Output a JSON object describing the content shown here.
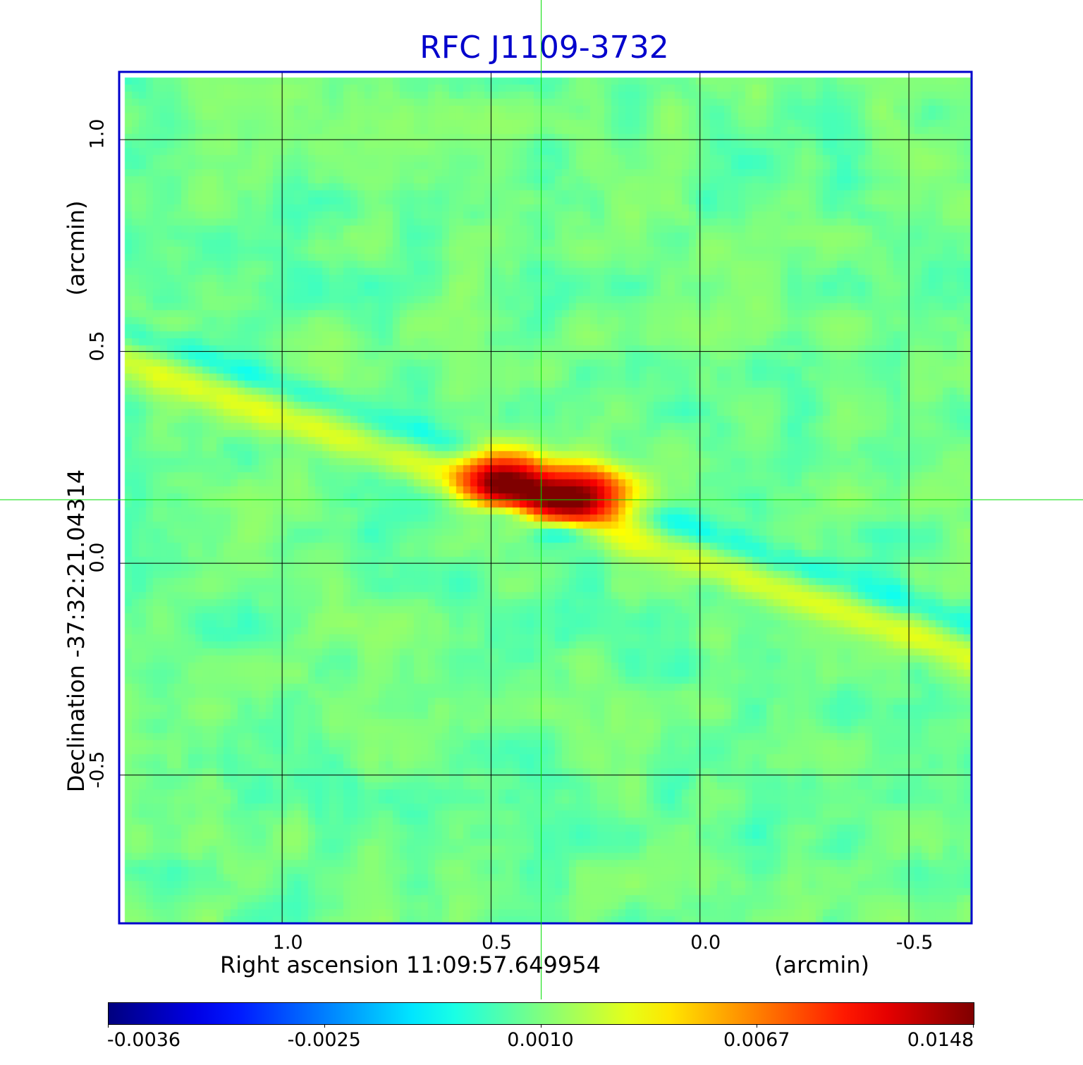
{
  "chart_data": {
    "type": "heatmap",
    "title": "RFC J1109-3732",
    "xlabel": "Right ascension  11:09:57.649954",
    "xunit": "(arcmin)",
    "ylabel": "Declination  -37:32:21.04314",
    "yunit": "(arcmin)",
    "x_ticks": [
      {
        "value": 1.0,
        "label": "1.0"
      },
      {
        "value": 0.5,
        "label": "0.5"
      },
      {
        "value": 0.0,
        "label": "0.0"
      },
      {
        "value": -0.5,
        "label": "-0.5"
      }
    ],
    "y_ticks": [
      {
        "value": 1.0,
        "label": "1.0"
      },
      {
        "value": 0.5,
        "label": "0.5"
      },
      {
        "value": 0.0,
        "label": "0.0"
      },
      {
        "value": -0.5,
        "label": "-0.5"
      }
    ],
    "xlim": [
      1.39,
      -0.65
    ],
    "ylim": [
      -0.85,
      1.16
    ],
    "grid": true,
    "crosshair": {
      "x": 0.38,
      "y": 0.15
    },
    "colormap": "jet",
    "colorbar": {
      "placement": "bottom",
      "min": -0.0036,
      "max": 0.0148,
      "ticks": [
        {
          "value": -0.0036,
          "label": "-0.0036",
          "pos": 0.0
        },
        {
          "value": -0.0025,
          "label": "-0.0025",
          "pos": 0.25
        },
        {
          "value": 0.001,
          "label": "0.0010",
          "pos": 0.5
        },
        {
          "value": 0.0067,
          "label": "0.0067",
          "pos": 0.75
        },
        {
          "value": 0.0148,
          "label": "0.0148",
          "pos": 1.0
        }
      ]
    },
    "background_level": 0.0008,
    "features": [
      {
        "name": "positive-lobe-east",
        "x": 0.47,
        "y": 0.2,
        "peak": 0.013,
        "sx": 0.07,
        "sy": 0.045
      },
      {
        "name": "positive-lobe-west",
        "x": 0.3,
        "y": 0.16,
        "peak": 0.0148,
        "sx": 0.09,
        "sy": 0.045
      },
      {
        "name": "negative-lobe-1",
        "x": 0.45,
        "y": 0.12,
        "peak": -0.0036,
        "sx": 0.05,
        "sy": 0.02
      },
      {
        "name": "negative-lobe-2",
        "x": 0.32,
        "y": 0.08,
        "peak": -0.0036,
        "sx": 0.06,
        "sy": 0.02
      }
    ],
    "streaks": [
      {
        "name": "diagonal-stripe-positive",
        "x0": 1.39,
        "y0": 0.48,
        "x1": -0.65,
        "y1": -0.22,
        "amp": 0.0022
      },
      {
        "name": "diagonal-stripe-negative",
        "x0": 1.39,
        "y0": 0.55,
        "x1": -0.65,
        "y1": -0.15,
        "amp": -0.0012
      }
    ]
  },
  "colors": {
    "title": "#0000cc",
    "frame": "#0000cc",
    "crosshair": "#00dd00",
    "grid": "#000000"
  }
}
